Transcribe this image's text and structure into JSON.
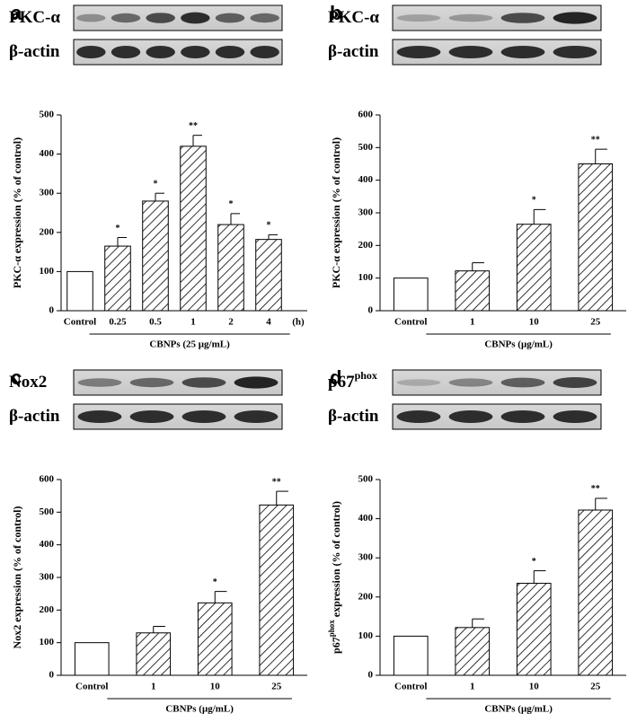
{
  "chart_data": [
    {
      "type": "bar",
      "panel_label": "a",
      "blot_labels": [
        "PKC-α",
        "β-actin"
      ],
      "ylabel": "PKC-α  expression (% of control)",
      "categories": [
        "Control",
        "0.25",
        "0.5",
        "1",
        "2",
        "4"
      ],
      "x_unit": "(h)",
      "xlabel": "CBNPs (25 μg/mL)",
      "values": [
        100,
        165,
        280,
        420,
        220,
        182
      ],
      "errors": [
        0,
        22,
        20,
        28,
        28,
        12
      ],
      "annotations": [
        null,
        "*",
        "*",
        "**",
        "*",
        "*"
      ],
      "ylim": [
        0,
        500
      ],
      "yticks": [
        0,
        100,
        200,
        300,
        400,
        500
      ]
    },
    {
      "type": "bar",
      "panel_label": "b",
      "blot_labels": [
        "PKC-α",
        "β-actin"
      ],
      "ylabel": "PKC-α  expression (% of control)",
      "categories": [
        "Control",
        "1",
        "10",
        "25"
      ],
      "xlabel": "CBNPs (μg/mL)",
      "values": [
        100,
        122,
        265,
        450
      ],
      "errors": [
        0,
        25,
        45,
        45
      ],
      "annotations": [
        null,
        null,
        "*",
        "**"
      ],
      "ylim": [
        0,
        600
      ],
      "yticks": [
        0,
        100,
        200,
        300,
        400,
        500,
        600
      ]
    },
    {
      "type": "bar",
      "panel_label": "c",
      "blot_labels": [
        "Nox2",
        "β-actin"
      ],
      "ylabel": "Nox2 expression (% of control)",
      "categories": [
        "Control",
        "1",
        "10",
        "25"
      ],
      "xlabel": "CBNPs (μg/mL)",
      "values": [
        100,
        130,
        222,
        522
      ],
      "errors": [
        0,
        20,
        35,
        42
      ],
      "annotations": [
        null,
        null,
        "*",
        "**"
      ],
      "ylim": [
        0,
        600
      ],
      "yticks": [
        0,
        100,
        200,
        300,
        400,
        500,
        600
      ]
    },
    {
      "type": "bar",
      "panel_label": "d",
      "blot_labels": [
        "p67",
        "β-actin"
      ],
      "blot_label_sup": "phox",
      "ylabel": "p67",
      "ylabel_sup": "phox",
      "ylabel_rest": " expression (% of control)",
      "categories": [
        "Control",
        "1",
        "10",
        "25"
      ],
      "xlabel": "CBNPs (μg/mL)",
      "values": [
        100,
        122,
        235,
        422
      ],
      "errors": [
        0,
        22,
        32,
        30
      ],
      "annotations": [
        null,
        null,
        "*",
        "**"
      ],
      "ylim": [
        0,
        500
      ],
      "yticks": [
        0,
        100,
        200,
        300,
        400,
        500
      ]
    }
  ]
}
